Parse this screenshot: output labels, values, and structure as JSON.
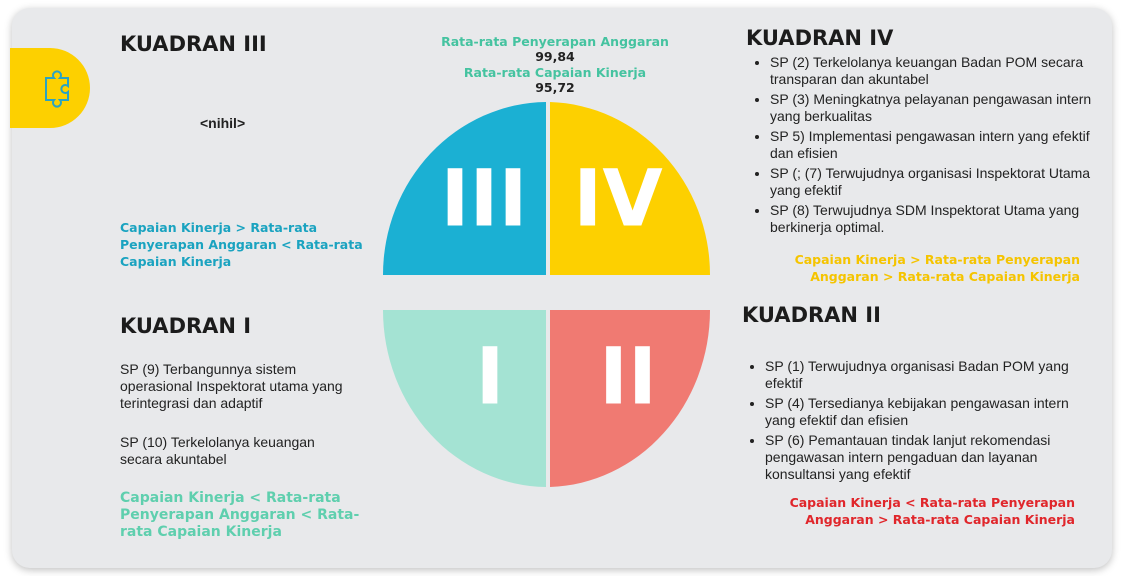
{
  "header": {
    "absorption_label": "Rata-rata Penyerapan Anggaran",
    "absorption_value": "99,84",
    "performance_label": "Rata-rata Capaian Kinerja",
    "performance_value": "95,72"
  },
  "quadrants": [
    {
      "numeral": "III",
      "title": "KUADRAN III",
      "items": [
        "<nihil>"
      ],
      "condition": "Capaian Kinerja > Rata-rata Penyerapan Anggaran < Rata-rata Capaian Kinerja"
    },
    {
      "numeral": "IV",
      "title": "KUADRAN IV",
      "items": [
        "SP (2) Terkelolanya keuangan Badan POM secara transparan dan akuntabel",
        "SP (3) Meningkatnya pelayanan pengawasan intern yang berkualitas",
        "SP 5) Implementasi pengawasan intern yang efektif dan efisien",
        "SP (; (7) Terwujudnya organisasi Inspektorat Utama yang efektif",
        "SP (8) Terwujudnya SDM Inspektorat Utama yang berkinerja optimal."
      ],
      "condition": "Capaian Kinerja > Rata-rata Penyerapan Anggaran > Rata-rata Capaian Kinerja"
    },
    {
      "numeral": "I",
      "title": "KUADRAN I",
      "items": [
        "SP (9) Terbangunnya sistem operasional Inspektorat utama yang terintegrasi dan adaptif",
        "SP (10) Terkelolanya keuangan secara akuntabel"
      ],
      "condition": "Capaian Kinerja < Rata-rata Penyerapan Anggaran < Rata-rata Capaian Kinerja"
    },
    {
      "numeral": "II",
      "title": "KUADRAN II",
      "items": [
        "SP (1) Terwujudnya organisasi Badan POM yang efektif",
        "SP (4) Tersedianya kebijakan pengawasan intern yang efektif dan efisien",
        "SP (6) Pemantauan tindak lanjut rekomendasi pengawasan intern pengaduan dan layanan konsultansi yang efektif"
      ],
      "condition": "Capaian Kinerja < Rata-rata Penyerapan Anggaran > Rata-rata Capaian Kinerja"
    }
  ]
}
